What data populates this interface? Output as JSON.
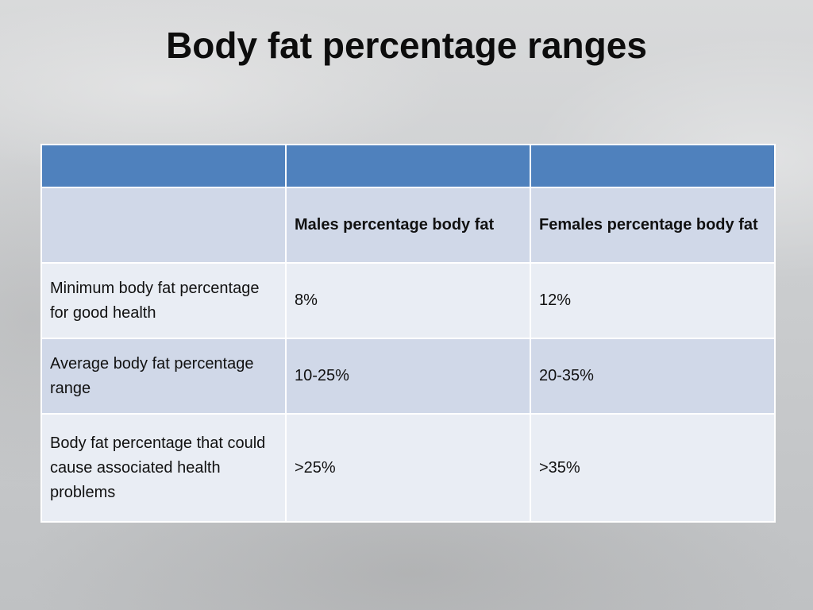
{
  "slide": {
    "title": "Body fat percentage ranges"
  },
  "table": {
    "header_row": [
      "",
      "",
      ""
    ],
    "column_headers": [
      "",
      "Males percentage body fat",
      "Females percentage body fat"
    ],
    "rows": [
      {
        "label": "Minimum body fat percentage for good health",
        "male": "8%",
        "female": "12%"
      },
      {
        "label": "Average body fat percentage range",
        "male": "10-25%",
        "female": "20-35%"
      },
      {
        "label": "Body fat percentage that could cause associated health problems",
        "male": ">25%",
        "female": ">35%"
      }
    ]
  },
  "colors": {
    "header_fill": "#4f81bd",
    "band_dark": "#d0d8e8",
    "band_light": "#e9edf4"
  }
}
